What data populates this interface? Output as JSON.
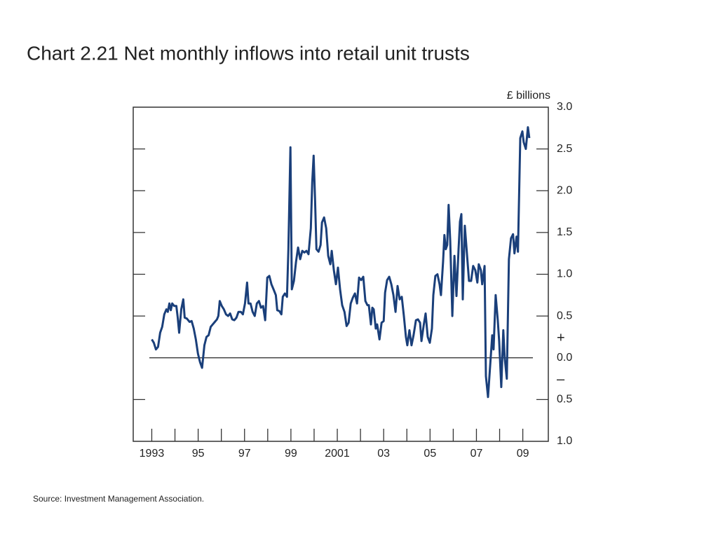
{
  "chart_data": {
    "type": "line",
    "title": "Chart 2.21  Net monthly inflows into retail unit trusts",
    "y_axis_label": "£ billions",
    "annotations": [
      "+",
      "–"
    ],
    "source": "Source:  Investment Management Association.",
    "color": "#1a3f7a",
    "xlim": [
      1992.2,
      2010.1
    ],
    "ylim": [
      -1,
      3
    ],
    "yticks": [
      {
        "value": 3,
        "label": "3.0"
      },
      2.5,
      {
        "value": 2,
        "label": "2.0"
      },
      1.5,
      {
        "value": 1,
        "label": "1.0"
      },
      0.5,
      {
        "value": 0,
        "label": "0.0"
      },
      {
        "value": -0.5,
        "label": "0.5"
      },
      {
        "value": -1,
        "label": "1.0"
      }
    ],
    "xticks": [
      1993,
      {
        "value": 1995,
        "label": "95"
      },
      {
        "value": 1997,
        "label": "97"
      },
      {
        "value": 1999,
        "label": "99"
      },
      2001,
      {
        "value": 2003,
        "label": "03"
      },
      {
        "value": 2005,
        "label": "05"
      },
      {
        "value": 2007,
        "label": "07"
      },
      {
        "value": 2009,
        "label": "09"
      }
    ],
    "xminorticks": [
      1994,
      1996,
      1998,
      2000,
      2002,
      2004,
      2006,
      2008
    ],
    "x": [
      1993.0,
      1993.09,
      1993.18,
      1993.27,
      1993.36,
      1993.45,
      1993.54,
      1993.63,
      1993.69,
      1993.76,
      1993.82,
      1993.88,
      1993.97,
      1994.06,
      1994.12,
      1994.18,
      1994.27,
      1994.36,
      1994.42,
      1994.51,
      1994.63,
      1994.72,
      1994.81,
      1994.9,
      1994.99,
      1995.08,
      1995.17,
      1995.27,
      1995.36,
      1995.45,
      1995.54,
      1995.63,
      1995.72,
      1995.81,
      1995.87,
      1995.93,
      1996.02,
      1996.11,
      1996.2,
      1996.29,
      1996.38,
      1996.47,
      1996.56,
      1996.65,
      1996.74,
      1996.84,
      1996.93,
      1997.02,
      1997.11,
      1997.17,
      1997.26,
      1997.35,
      1997.44,
      1997.53,
      1997.62,
      1997.71,
      1997.8,
      1997.89,
      1997.98,
      1998.07,
      1998.16,
      1998.25,
      1998.35,
      1998.41,
      1998.5,
      1998.59,
      1998.65,
      1998.74,
      1998.83,
      1998.89,
      1998.98,
      1999.04,
      1999.13,
      1999.22,
      1999.31,
      1999.4,
      1999.49,
      1999.58,
      1999.67,
      1999.76,
      1999.86,
      1999.92,
      1999.98,
      2000.04,
      2000.1,
      2000.19,
      2000.28,
      2000.34,
      2000.43,
      2000.52,
      2000.61,
      2000.7,
      2000.76,
      2000.85,
      2000.94,
      2001.03,
      2001.12,
      2001.21,
      2001.31,
      2001.4,
      2001.49,
      2001.58,
      2001.67,
      2001.76,
      2001.85,
      2001.94,
      2002.03,
      2002.12,
      2002.21,
      2002.3,
      2002.36,
      2002.45,
      2002.51,
      2002.57,
      2002.66,
      2002.72,
      2002.82,
      2002.91,
      2003.0,
      2003.06,
      2003.15,
      2003.24,
      2003.33,
      2003.42,
      2003.51,
      2003.6,
      2003.69,
      2003.78,
      2003.87,
      2003.96,
      2004.02,
      2004.11,
      2004.2,
      2004.29,
      2004.39,
      2004.48,
      2004.57,
      2004.63,
      2004.72,
      2004.81,
      2004.9,
      2004.99,
      2005.08,
      2005.14,
      2005.23,
      2005.32,
      2005.41,
      2005.47,
      2005.56,
      2005.62,
      2005.68,
      2005.74,
      2005.8,
      2005.87,
      2005.96,
      2006.05,
      2006.14,
      2006.23,
      2006.29,
      2006.35,
      2006.41,
      2006.5,
      2006.59,
      2006.68,
      2006.77,
      2006.86,
      2006.95,
      2007.04,
      2007.1,
      2007.19,
      2007.25,
      2007.35,
      2007.41,
      2007.5,
      2007.59,
      2007.68,
      2007.74,
      2007.83,
      2007.92,
      2007.98,
      2008.07,
      2008.16,
      2008.22,
      2008.31,
      2008.4,
      2008.49,
      2008.58,
      2008.64,
      2008.73,
      2008.79,
      2008.89,
      2008.98,
      2009.04,
      2009.13,
      2009.22,
      2009.28
    ],
    "values": [
      0.22,
      0.18,
      0.1,
      0.13,
      0.3,
      0.37,
      0.52,
      0.58,
      0.55,
      0.65,
      0.57,
      0.65,
      0.62,
      0.62,
      0.48,
      0.3,
      0.58,
      0.7,
      0.48,
      0.47,
      0.43,
      0.44,
      0.35,
      0.22,
      0.05,
      -0.05,
      -0.12,
      0.15,
      0.25,
      0.27,
      0.37,
      0.4,
      0.43,
      0.46,
      0.5,
      0.68,
      0.62,
      0.58,
      0.52,
      0.5,
      0.53,
      0.46,
      0.45,
      0.48,
      0.55,
      0.55,
      0.52,
      0.65,
      0.9,
      0.65,
      0.65,
      0.55,
      0.5,
      0.65,
      0.68,
      0.6,
      0.62,
      0.45,
      0.96,
      0.98,
      0.88,
      0.82,
      0.75,
      0.57,
      0.56,
      0.52,
      0.73,
      0.77,
      0.73,
      1.3,
      2.52,
      0.82,
      0.92,
      1.15,
      1.32,
      1.18,
      1.28,
      1.26,
      1.28,
      1.24,
      1.55,
      2.1,
      2.42,
      1.9,
      1.3,
      1.27,
      1.35,
      1.62,
      1.68,
      1.55,
      1.22,
      1.12,
      1.28,
      1.05,
      0.88,
      1.08,
      0.82,
      0.63,
      0.55,
      0.38,
      0.42,
      0.65,
      0.72,
      0.77,
      0.65,
      0.96,
      0.93,
      0.97,
      0.68,
      0.63,
      0.63,
      0.4,
      0.6,
      0.58,
      0.35,
      0.4,
      0.22,
      0.42,
      0.44,
      0.78,
      0.93,
      0.97,
      0.88,
      0.75,
      0.55,
      0.86,
      0.7,
      0.73,
      0.5,
      0.25,
      0.15,
      0.33,
      0.15,
      0.27,
      0.45,
      0.46,
      0.42,
      0.2,
      0.38,
      0.53,
      0.25,
      0.18,
      0.35,
      0.75,
      0.98,
      1.0,
      0.88,
      0.75,
      1.15,
      1.47,
      1.3,
      1.35,
      1.83,
      1.4,
      0.5,
      1.22,
      0.74,
      1.3,
      1.63,
      1.72,
      0.7,
      1.58,
      1.25,
      0.92,
      0.92,
      1.1,
      1.05,
      0.9,
      1.12,
      1.05,
      0.88,
      1.1,
      -0.22,
      -0.47,
      -0.1,
      0.27,
      0.1,
      0.75,
      0.45,
      0.2,
      -0.35,
      0.33,
      0.0,
      -0.25,
      1.18,
      1.43,
      1.48,
      1.25,
      1.45,
      1.27,
      2.63,
      2.71,
      2.58,
      2.5,
      2.76,
      2.63
    ]
  }
}
